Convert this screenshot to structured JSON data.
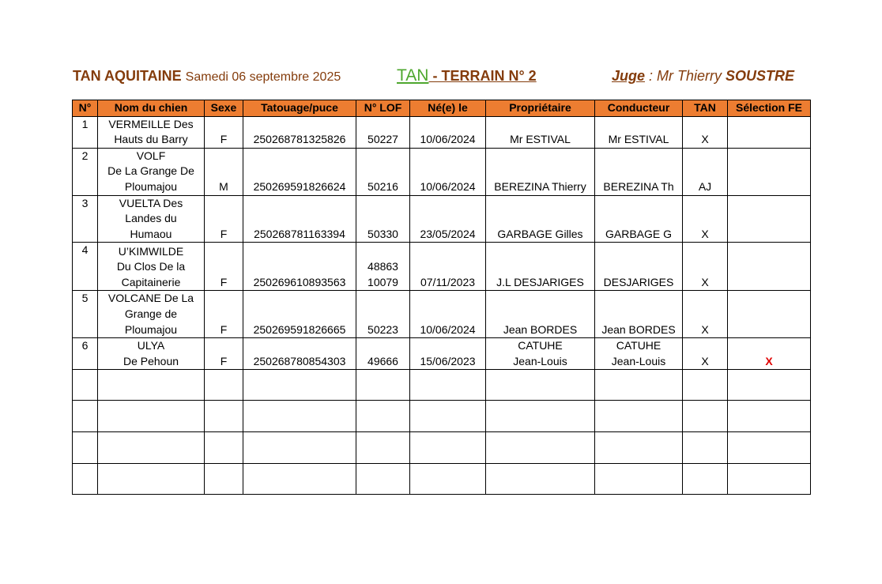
{
  "header": {
    "org": "TAN AQUITAINE",
    "date": "Samedi 06 septembre 2025",
    "tan": "TAN",
    "terrain": " - TERRAIN N° 2",
    "juge_label": "Juge",
    "juge_prefix": " : Mr Thierry ",
    "juge_name": "SOUSTRE"
  },
  "colors": {
    "header_bg": "#ed7d31",
    "title": "#843c0c",
    "tan": "#4ea72e",
    "selection": "#e00000"
  },
  "table": {
    "columns": [
      "N°",
      "Nom du chien",
      "Sexe",
      "Tatouage/puce",
      "N° LOF",
      "Né(e) le",
      "Propriétaire",
      "Conducteur",
      "TAN",
      "Sélection FE"
    ],
    "rows": [
      [
        "1",
        "VERMEILLE Des\nHauts du Barry",
        "F",
        "250268781325826",
        "50227",
        "10/06/2024",
        "Mr ESTIVAL",
        "Mr ESTIVAL",
        "X",
        ""
      ],
      [
        "2",
        "VOLF\nDe La Grange De\nPloumajou",
        "M",
        "250269591826624",
        "50216",
        "10/06/2024",
        "BEREZINA Thierry",
        "BEREZINA Th",
        "AJ",
        ""
      ],
      [
        "3",
        "VUELTA Des\nLandes du\nHumaou",
        "F",
        "250268781163394",
        "50330",
        "23/05/2024",
        "GARBAGE Gilles",
        "GARBAGE G",
        "X",
        ""
      ],
      [
        "4",
        "U’KIMWILDE\nDu Clos De la\nCapitainerie",
        "F",
        "250269610893563",
        "48863\n10079",
        "07/11/2023",
        "J.L DESJARIGES",
        "DESJARIGES",
        "X",
        ""
      ],
      [
        "5",
        "VOLCANE De La\nGrange de\nPloumajou",
        "F",
        "250269591826665",
        "50223",
        "10/06/2024",
        "Jean BORDES",
        "Jean BORDES",
        "X",
        ""
      ],
      [
        "6",
        "ULYA\nDe Pehoun",
        "F",
        "250268780854303",
        "49666",
        "15/06/2023",
        "CATUHE\nJean-Louis",
        "CATUHE\nJean-Louis",
        "X",
        "X"
      ],
      [
        "",
        "",
        "",
        "",
        "",
        "",
        "",
        "",
        "",
        ""
      ],
      [
        "",
        "",
        "",
        "",
        "",
        "",
        "",
        "",
        "",
        ""
      ],
      [
        "",
        "",
        "",
        "",
        "",
        "",
        "",
        "",
        "",
        ""
      ],
      [
        "",
        "",
        "",
        "",
        "",
        "",
        "",
        "",
        "",
        ""
      ]
    ]
  }
}
